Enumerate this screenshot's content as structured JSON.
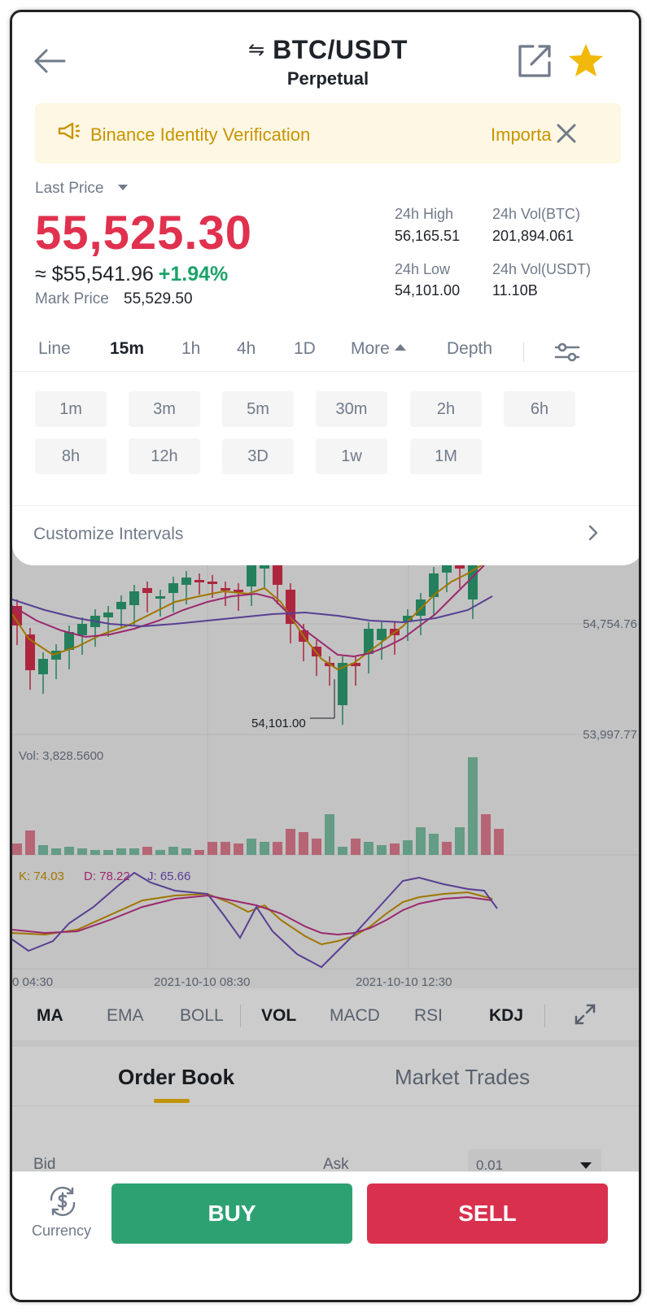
{
  "header": {
    "title": "BTC/USDT",
    "subtitle": "Perpetual",
    "swap_icon": "⇋"
  },
  "notice": {
    "message": "Binance Identity Verification",
    "message_2": "Importa"
  },
  "price": {
    "last_price_label": "Last Price",
    "last_price": "55,525.30",
    "approx_usd": "≈ $55,541.96",
    "change_pct": "+1.94%",
    "mark_label": "Mark Price",
    "mark_price": "55,529.50"
  },
  "stats": {
    "high_label": "24h High",
    "high_value": "56,165.51",
    "vol_btc_label": "24h Vol(BTC)",
    "vol_btc_value": "201,894.061",
    "low_label": "24h Low",
    "low_value": "54,101.00",
    "vol_usdt_label": "24h Vol(USDT)",
    "vol_usdt_value": "11.10B"
  },
  "interval_tabs": {
    "line": "Line",
    "m15": "15m",
    "h1": "1h",
    "h4": "4h",
    "d1": "1D",
    "more": "More",
    "depth": "Depth"
  },
  "interval_chips": [
    "1m",
    "3m",
    "5m",
    "30m",
    "2h",
    "6h",
    "8h",
    "12h",
    "3D",
    "1w",
    "1M"
  ],
  "customize": "Customize Intervals",
  "chart": {
    "y_label_top": "54,754.76",
    "y_label_bottom": "53,997.77",
    "low_marker": "54,101.00",
    "vol_label": "Vol: 3,828.5600",
    "kdj_k": "K: 74.03",
    "kdj_d": "D: 78.22",
    "kdj_j": "J: 65.66",
    "time_1": "0 04:30",
    "time_2": "2021-10-10 08:30",
    "time_3": "2021-10-10 12:30"
  },
  "indicators": {
    "ma": "MA",
    "ema": "EMA",
    "boll": "BOLL",
    "vol": "VOL",
    "macd": "MACD",
    "rsi": "RSI",
    "kdj": "KDJ"
  },
  "orderbook": {
    "tab_order_book": "Order Book",
    "tab_market_trades": "Market Trades",
    "bid": "Bid",
    "ask": "Ask",
    "precision": "0.01"
  },
  "bottom": {
    "currency": "Currency",
    "buy": "BUY",
    "sell": "SELL"
  },
  "colors": {
    "up": "#2ea173",
    "down": "#d9304e",
    "accent": "#f0b90b",
    "price_red": "#e0314e"
  }
}
